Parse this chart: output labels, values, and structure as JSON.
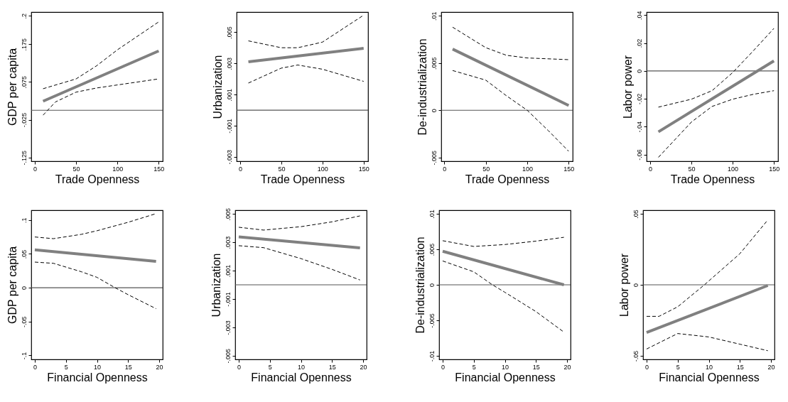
{
  "chart_data": [
    {
      "type": "line",
      "xlabel": "Trade Openness",
      "ylabel": "GDP per capita",
      "xlim": [
        -4.3,
        154.9
      ],
      "xticks": [
        0,
        50,
        100,
        150
      ],
      "ylim": [
        -0.135,
        0.26
      ],
      "yticks": [
        {
          "value": 0.25,
          "label": ".2"
        },
        {
          "value": 0.175,
          "label": ".175"
        },
        {
          "value": 0.075,
          "label": ".075"
        },
        {
          "value": -0.025,
          "label": "-.025"
        },
        {
          "value": -0.125,
          "label": "-.125"
        }
      ],
      "ref_lines": [
        {
          "axis": "y",
          "value": 0,
          "color": "#555555"
        }
      ],
      "series": [
        {
          "color": "#808080",
          "line_style": "solid",
          "x": [
            10,
            150
          ],
          "values": [
            0.024,
            0.157
          ]
        },
        {
          "color": "#000000",
          "line_style": "dashed",
          "x": [
            10,
            50,
            75,
            100,
            150
          ],
          "values": [
            0.057,
            0.083,
            0.118,
            0.16,
            0.234
          ]
        },
        {
          "color": "#000000",
          "line_style": "dashed",
          "x": [
            10,
            25,
            50,
            75,
            100,
            150
          ],
          "values": [
            -0.013,
            0.022,
            0.048,
            0.059,
            0.067,
            0.083
          ]
        }
      ]
    },
    {
      "type": "line",
      "xlabel": "Trade Openness",
      "ylabel": "Urbanization",
      "xlim": [
        -4.3,
        155.4
      ],
      "xticks": [
        0,
        50,
        100,
        150
      ],
      "ylim": [
        -0.00328,
        0.0063
      ],
      "yticks": [
        {
          "value": 0.005,
          "label": ".005"
        },
        {
          "value": 0.003,
          "label": ".003"
        },
        {
          "value": 0.001,
          "label": ".001"
        },
        {
          "value": -0.001,
          "label": "-.001"
        },
        {
          "value": -0.003,
          "label": "-.003"
        }
      ],
      "ref_lines": [
        {
          "axis": "y",
          "value": 0,
          "color": "#555555"
        }
      ],
      "series": [
        {
          "color": "#808080",
          "line_style": "solid",
          "x": [
            10,
            150
          ],
          "values": [
            0.00311,
            0.00397
          ]
        },
        {
          "color": "#000000",
          "line_style": "dashed",
          "x": [
            10,
            50,
            70,
            100,
            150
          ],
          "values": [
            0.00445,
            0.00401,
            0.00401,
            0.00437,
            0.0061
          ]
        },
        {
          "color": "#000000",
          "line_style": "dashed",
          "x": [
            10,
            50,
            70,
            100,
            150
          ],
          "values": [
            0.00174,
            0.0027,
            0.0029,
            0.00263,
            0.00185
          ]
        }
      ]
    },
    {
      "type": "line",
      "xlabel": "Trade Openness",
      "ylabel": "De-industrialization",
      "xlim": [
        -3.7,
        154.9
      ],
      "xticks": [
        0,
        50,
        100,
        150
      ],
      "ylim": [
        -0.0054,
        0.0104
      ],
      "yticks": [
        {
          "value": 0.01,
          "label": ".01"
        },
        {
          "value": 0.005,
          "label": ".005"
        },
        {
          "value": 0,
          "label": "0"
        },
        {
          "value": -0.005,
          "label": "-.005"
        }
      ],
      "ref_lines": [
        {
          "axis": "y",
          "value": 0,
          "color": "#555555"
        }
      ],
      "series": [
        {
          "color": "#808080",
          "line_style": "solid",
          "x": [
            10,
            150
          ],
          "values": [
            0.00648,
            0.00051
          ]
        },
        {
          "color": "#000000",
          "line_style": "dashed",
          "x": [
            10,
            50,
            75,
            100,
            150
          ],
          "values": [
            0.0088,
            0.00663,
            0.00582,
            0.00554,
            0.00536
          ]
        },
        {
          "color": "#000000",
          "line_style": "dashed",
          "x": [
            10,
            50,
            75,
            100,
            125,
            150
          ],
          "values": [
            0.00421,
            0.00319,
            0.00153,
            0,
            -0.00212,
            -0.00434
          ]
        }
      ]
    },
    {
      "type": "line",
      "xlabel": "Trade Openness",
      "ylabel": "Labor power",
      "xlim": [
        -4.3,
        155
      ],
      "xticks": [
        0,
        50,
        100,
        150
      ],
      "ylim": [
        -0.0648,
        0.0422
      ],
      "yticks": [
        {
          "value": 0.04,
          "label": ".04"
        },
        {
          "value": 0.02,
          "label": ".02"
        },
        {
          "value": 0,
          "label": "0"
        },
        {
          "value": -0.02,
          "label": "-.02"
        },
        {
          "value": -0.04,
          "label": "-.04"
        },
        {
          "value": -0.06,
          "label": "-.06"
        }
      ],
      "ref_lines": [
        {
          "axis": "y",
          "value": 0,
          "color": "#555555"
        }
      ],
      "series": [
        {
          "color": "#808080",
          "line_style": "solid",
          "x": [
            10,
            150
          ],
          "values": [
            -0.0437,
            0.0072
          ]
        },
        {
          "color": "#000000",
          "line_style": "dashed",
          "x": [
            10,
            50,
            75,
            100,
            125,
            150
          ],
          "values": [
            -0.026,
            -0.0203,
            -0.0142,
            -0.0012,
            0.0144,
            0.0305
          ]
        },
        {
          "color": "#000000",
          "line_style": "dashed",
          "x": [
            10,
            50,
            75,
            100,
            125,
            150
          ],
          "values": [
            -0.062,
            -0.0367,
            -0.0255,
            -0.0203,
            -0.0168,
            -0.0142
          ]
        }
      ]
    },
    {
      "type": "line",
      "xlabel": "Financial Openness",
      "ylabel": "GDP per capita",
      "xlim": [
        -0.57,
        20.57
      ],
      "xticks": [
        0,
        5,
        10,
        15,
        20
      ],
      "ylim": [
        -0.1059,
        0.1144
      ],
      "yticks": [
        {
          "value": 0.1,
          "label": ".1"
        },
        {
          "value": 0.05,
          "label": ".05"
        },
        {
          "value": 0,
          "label": "0"
        },
        {
          "value": -0.05,
          "label": "-.05"
        },
        {
          "value": -0.1,
          "label": "-.1"
        }
      ],
      "ref_lines": [
        {
          "axis": "y",
          "value": 0,
          "color": "#555555"
        }
      ],
      "series": [
        {
          "color": "#808080",
          "line_style": "solid",
          "x": [
            0,
            19.5
          ],
          "values": [
            0.056,
            0.0389
          ]
        },
        {
          "color": "#000000",
          "line_style": "dashed",
          "x": [
            0,
            3,
            7.5,
            10,
            15,
            19.5
          ],
          "values": [
            0.0749,
            0.0724,
            0.0788,
            0.0841,
            0.0966,
            0.1094
          ]
        },
        {
          "color": "#000000",
          "line_style": "dashed",
          "x": [
            0,
            3,
            7.5,
            10,
            12.9,
            15,
            19.5
          ],
          "values": [
            0.0378,
            0.036,
            0.0235,
            0.0153,
            0,
            -0.0103,
            -0.031
          ]
        }
      ]
    },
    {
      "type": "line",
      "xlabel": "Financial Openness",
      "ylabel": "Urbanization",
      "xlim": [
        -0.57,
        20.57
      ],
      "xticks": [
        0,
        5,
        10,
        15,
        20
      ],
      "ylim": [
        -0.00526,
        0.00526
      ],
      "yticks": [
        {
          "value": 0.005,
          "label": ".005"
        },
        {
          "value": 0.003,
          "label": ".003"
        },
        {
          "value": 0.001,
          "label": ".001"
        },
        {
          "value": -0.001,
          "label": "-.001"
        },
        {
          "value": -0.003,
          "label": "-.003"
        },
        {
          "value": -0.005,
          "label": "-.005"
        }
      ],
      "ref_lines": [
        {
          "axis": "y",
          "value": 0,
          "color": "#555555"
        }
      ],
      "series": [
        {
          "color": "#808080",
          "line_style": "solid",
          "x": [
            0,
            19.5
          ],
          "values": [
            0.00338,
            0.0026
          ]
        },
        {
          "color": "#000000",
          "line_style": "dashed",
          "x": [
            0,
            4,
            10,
            15,
            19.5
          ],
          "values": [
            0.00406,
            0.00386,
            0.0041,
            0.00444,
            0.00486
          ]
        },
        {
          "color": "#000000",
          "line_style": "dashed",
          "x": [
            0,
            4,
            10,
            15,
            19.5
          ],
          "values": [
            0.00276,
            0.00262,
            0.00185,
            0.00109,
            0.00034
          ]
        }
      ]
    },
    {
      "type": "line",
      "xlabel": "Financial Openness",
      "ylabel": "De-industrialization",
      "xlim": [
        -0.57,
        20.57
      ],
      "xticks": [
        0,
        5,
        10,
        15,
        20
      ],
      "ylim": [
        -0.0105,
        0.0105
      ],
      "yticks": [
        {
          "value": 0.01,
          "label": ".01"
        },
        {
          "value": 0.005,
          "label": ".005"
        },
        {
          "value": 0,
          "label": "0"
        },
        {
          "value": -0.005,
          "label": "-.005"
        },
        {
          "value": -0.01,
          "label": "-.01"
        }
      ],
      "ref_lines": [
        {
          "axis": "y",
          "value": 0,
          "color": "#555555"
        }
      ],
      "series": [
        {
          "color": "#808080",
          "line_style": "solid",
          "x": [
            0,
            19.5
          ],
          "values": [
            0.00472,
            0
          ]
        },
        {
          "color": "#000000",
          "line_style": "dashed",
          "x": [
            0,
            5,
            10,
            15,
            19.5
          ],
          "values": [
            0.00621,
            0.0054,
            0.00567,
            0.00615,
            0.00669
          ]
        },
        {
          "color": "#000000",
          "line_style": "dashed",
          "x": [
            0,
            5,
            8,
            10,
            15,
            19.5
          ],
          "values": [
            0.00336,
            0.00183,
            0,
            -0.00105,
            -0.00377,
            -0.00666
          ]
        }
      ]
    },
    {
      "type": "line",
      "xlabel": "Financial Openness",
      "ylabel": "Labor power",
      "xlim": [
        -0.57,
        20.57
      ],
      "xticks": [
        0,
        5,
        10,
        15,
        20
      ],
      "ylim": [
        -0.0525,
        0.0525
      ],
      "yticks": [
        {
          "value": 0.05,
          "label": ".05"
        },
        {
          "value": 0,
          "label": "0"
        },
        {
          "value": -0.05,
          "label": "-.05"
        }
      ],
      "ref_lines": [
        {
          "axis": "y",
          "value": 0,
          "color": "#555555"
        }
      ],
      "series": [
        {
          "color": "#808080",
          "line_style": "solid",
          "x": [
            0,
            19.5
          ],
          "values": [
            -0.0336,
            -0.0005
          ]
        },
        {
          "color": "#000000",
          "line_style": "dashed",
          "x": [
            0,
            2,
            5,
            9.3,
            15,
            19.5
          ],
          "values": [
            -0.0222,
            -0.0222,
            -0.0155,
            0,
            0.0219,
            0.0457
          ]
        },
        {
          "color": "#000000",
          "line_style": "dashed",
          "x": [
            0,
            5,
            10,
            15,
            19.5
          ],
          "values": [
            -0.0452,
            -0.0343,
            -0.0367,
            -0.0418,
            -0.0464
          ]
        }
      ]
    }
  ]
}
